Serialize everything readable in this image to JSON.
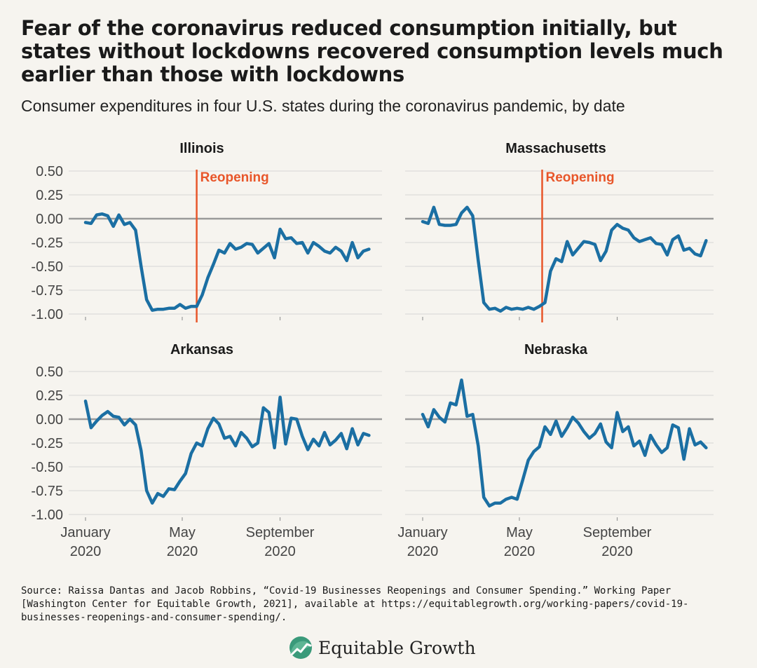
{
  "title": "Fear of the coronavirus reduced consumption initially, but states without lockdowns recovered consumption levels much earlier than those with lockdowns",
  "subtitle": "Consumer expenditures in four U.S. states during the coronavirus pandemic, by date",
  "source": "Source: Raissa Dantas and Jacob Robbins, “Covid-19 Businesses Reopenings and Consumer Spending.” Working Paper [Washington Center for Equitable Growth, 2021], available at https://equitablegrowth.org/working-papers/covid-19-businesses-reopenings-and-consumer-spending/.",
  "logo_text": "Equitable Growth",
  "colors": {
    "line": "#1b6fa3",
    "reopening": "#e8562a",
    "zero_line": "#9a9a9a",
    "grid": "#d6d6d6",
    "background": "#f6f4ef",
    "logo": "#3a9a7a"
  },
  "chart_data": [
    {
      "type": "line",
      "title": "Illinois",
      "ylim": [
        -1.0,
        0.5
      ],
      "yticks": [
        "0.50",
        "0.25",
        "0.00",
        "-0.25",
        "-0.50",
        "-0.75",
        "-1.00"
      ],
      "xticks": [
        {
          "x": 0,
          "label": [
            "January",
            "2020"
          ]
        },
        {
          "x": 17.4,
          "label": [
            "May",
            "2020"
          ]
        },
        {
          "x": 35,
          "label": [
            "September",
            "2020"
          ]
        }
      ],
      "reopening": {
        "x": 20.0,
        "label": "Reopening"
      },
      "series": [
        {
          "values": [
            -0.04,
            -0.05,
            0.04,
            0.05,
            0.03,
            -0.08,
            0.04,
            -0.06,
            -0.04,
            -0.12,
            -0.5,
            -0.85,
            -0.96,
            -0.95,
            -0.95,
            -0.94,
            -0.94,
            -0.9,
            -0.94,
            -0.92,
            -0.92,
            -0.8,
            -0.62,
            -0.48,
            -0.33,
            -0.36,
            -0.26,
            -0.32,
            -0.3,
            -0.26,
            -0.27,
            -0.36,
            -0.31,
            -0.26,
            -0.41,
            -0.11,
            -0.21,
            -0.2,
            -0.26,
            -0.25,
            -0.36,
            -0.25,
            -0.29,
            -0.34,
            -0.36,
            -0.3,
            -0.34,
            -0.44,
            -0.25,
            -0.41,
            -0.34,
            -0.32
          ]
        }
      ]
    },
    {
      "type": "line",
      "title": "Massachusetts",
      "ylim": [
        -1.0,
        0.5
      ],
      "yticks": [
        "0.50",
        "0.25",
        "0.00",
        "-0.25",
        "-0.50",
        "-0.75",
        "-1.00"
      ],
      "xticks": [
        {
          "x": 0,
          "label": [
            "January",
            "2020"
          ]
        },
        {
          "x": 17.4,
          "label": [
            "May",
            "2020"
          ]
        },
        {
          "x": 35,
          "label": [
            "September",
            "2020"
          ]
        }
      ],
      "reopening": {
        "x": 21.5,
        "label": "Reopening"
      },
      "series": [
        {
          "values": [
            -0.03,
            -0.05,
            0.12,
            -0.06,
            -0.07,
            -0.07,
            -0.06,
            0.06,
            0.12,
            0.03,
            -0.44,
            -0.88,
            -0.95,
            -0.94,
            -0.97,
            -0.93,
            -0.95,
            -0.94,
            -0.95,
            -0.93,
            -0.95,
            -0.92,
            -0.88,
            -0.55,
            -0.42,
            -0.45,
            -0.24,
            -0.38,
            -0.31,
            -0.24,
            -0.25,
            -0.27,
            -0.44,
            -0.34,
            -0.12,
            -0.06,
            -0.1,
            -0.12,
            -0.2,
            -0.24,
            -0.22,
            -0.2,
            -0.26,
            -0.27,
            -0.38,
            -0.22,
            -0.18,
            -0.33,
            -0.31,
            -0.37,
            -0.39,
            -0.23
          ]
        }
      ]
    },
    {
      "type": "line",
      "title": "Arkansas",
      "ylim": [
        -1.0,
        0.5
      ],
      "yticks": [
        "0.50",
        "0.25",
        "0.00",
        "-0.25",
        "-0.50",
        "-0.75",
        "-1.00"
      ],
      "xticks": [
        {
          "x": 0,
          "label": [
            "January",
            "2020"
          ]
        },
        {
          "x": 17.4,
          "label": [
            "May",
            "2020"
          ]
        },
        {
          "x": 35,
          "label": [
            "September",
            "2020"
          ]
        }
      ],
      "series": [
        {
          "values": [
            0.19,
            -0.09,
            -0.02,
            0.04,
            0.08,
            0.03,
            0.02,
            -0.06,
            0.0,
            -0.06,
            -0.33,
            -0.75,
            -0.88,
            -0.78,
            -0.81,
            -0.73,
            -0.74,
            -0.65,
            -0.57,
            -0.36,
            -0.25,
            -0.28,
            -0.1,
            0.01,
            -0.05,
            -0.2,
            -0.18,
            -0.28,
            -0.14,
            -0.2,
            -0.29,
            -0.25,
            0.12,
            0.07,
            -0.3,
            0.23,
            -0.26,
            0.01,
            0.0,
            -0.18,
            -0.32,
            -0.21,
            -0.28,
            -0.14,
            -0.27,
            -0.22,
            -0.15,
            -0.31,
            -0.1,
            -0.27,
            -0.15,
            -0.17
          ]
        }
      ]
    },
    {
      "type": "line",
      "title": "Nebraska",
      "ylim": [
        -1.0,
        0.5
      ],
      "yticks": [
        "0.50",
        "0.25",
        "0.00",
        "-0.25",
        "-0.50",
        "-0.75",
        "-1.00"
      ],
      "xticks": [
        {
          "x": 0,
          "label": [
            "January",
            "2020"
          ]
        },
        {
          "x": 17.4,
          "label": [
            "May",
            "2020"
          ]
        },
        {
          "x": 35,
          "label": [
            "September",
            "2020"
          ]
        }
      ],
      "series": [
        {
          "values": [
            0.05,
            -0.08,
            0.1,
            0.02,
            -0.03,
            0.17,
            0.15,
            0.41,
            0.03,
            0.05,
            -0.28,
            -0.82,
            -0.91,
            -0.88,
            -0.88,
            -0.84,
            -0.82,
            -0.84,
            -0.64,
            -0.43,
            -0.34,
            -0.29,
            -0.08,
            -0.16,
            -0.02,
            -0.18,
            -0.09,
            0.02,
            -0.04,
            -0.13,
            -0.2,
            -0.15,
            -0.05,
            -0.24,
            -0.3,
            0.07,
            -0.13,
            -0.08,
            -0.28,
            -0.23,
            -0.38,
            -0.17,
            -0.27,
            -0.35,
            -0.3,
            -0.06,
            -0.09,
            -0.42,
            -0.1,
            -0.27,
            -0.24,
            -0.3
          ]
        }
      ]
    }
  ]
}
